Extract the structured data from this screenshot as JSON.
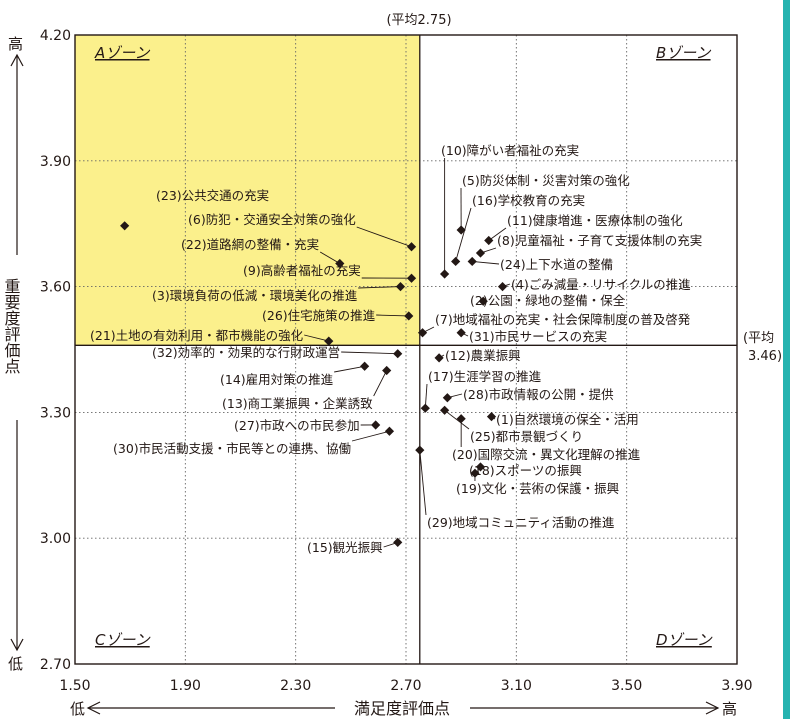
{
  "chart_data": {
    "type": "scatter",
    "x_ticks": [
      "1.50",
      "1.90",
      "2.30",
      "2.70",
      "3.10",
      "3.50",
      "3.90"
    ],
    "y_ticks": [
      "2.70",
      "3.00",
      "3.30",
      "3.60",
      "3.90",
      "4.20"
    ],
    "xlim": [
      1.5,
      3.9
    ],
    "ylim": [
      2.7,
      4.2
    ],
    "xlabel": "満足度評価点",
    "x_low": "低",
    "x_high": "高",
    "ylabel": "重要度評価点",
    "y_low": "低",
    "y_high": "高",
    "mean_x": 2.75,
    "mean_y": 3.46,
    "mean_x_label": "(平均2.75)",
    "mean_y_label_1": "(平均",
    "mean_y_label_2": "3.46)",
    "zones": {
      "a": "Aゾーン",
      "b": "Bゾーン",
      "c": "Cゾーン",
      "d": "Dゾーン"
    },
    "highlight_color": "#fbf08c",
    "grid": true,
    "points": [
      {
        "label": "(23)公共交通の充実",
        "x": 1.68,
        "y": 3.745
      },
      {
        "label": "(6)防犯・交通安全対策の強化",
        "x": 2.72,
        "y": 3.695
      },
      {
        "label": "(22)道路網の整備・充実",
        "x": 2.46,
        "y": 3.655
      },
      {
        "label": "(9)高齢者福祉の充実",
        "x": 2.72,
        "y": 3.62
      },
      {
        "label": "(3)環境負荷の低減・環境美化の推進",
        "x": 2.68,
        "y": 3.6
      },
      {
        "label": "(26)住宅施策の推進",
        "x": 2.71,
        "y": 3.53
      },
      {
        "label": "(21)土地の有効利用・都市機能の強化",
        "x": 2.42,
        "y": 3.47
      },
      {
        "label": "(10)障がい者福祉の充実",
        "x": 2.84,
        "y": 3.63
      },
      {
        "label": "(5)防災体制・災害対策の強化",
        "x": 2.9,
        "y": 3.735
      },
      {
        "label": "(16)学校教育の充実",
        "x": 2.88,
        "y": 3.66
      },
      {
        "label": "(11)健康増進・医療体制の強化",
        "x": 3.0,
        "y": 3.71
      },
      {
        "label": "(8)児童福祉・子育て支援体制の充実",
        "x": 2.97,
        "y": 3.68
      },
      {
        "label": "(24)上下水道の整備",
        "x": 2.94,
        "y": 3.66
      },
      {
        "label": "(4)ごみ減量・リサイクルの推進",
        "x": 3.05,
        "y": 3.6
      },
      {
        "label": "(2)公園・緑地の整備・保全",
        "x": 2.98,
        "y": 3.565
      },
      {
        "label": "(7)地域福祉の充実・社会保障制度の普及啓発",
        "x": 2.76,
        "y": 3.49
      },
      {
        "label": "(31)市民サービスの充実",
        "x": 2.9,
        "y": 3.49
      },
      {
        "label": "(32)効率的・効果的な行財政運営",
        "x": 2.67,
        "y": 3.44
      },
      {
        "label": "(14)雇用対策の推進",
        "x": 2.55,
        "y": 3.41
      },
      {
        "label": "(13)商工業振興・企業誘致",
        "x": 2.63,
        "y": 3.4
      },
      {
        "label": "(27)市政への市民参加",
        "x": 2.59,
        "y": 3.27
      },
      {
        "label": "(30)市民活動支援・市民等との連携、協働",
        "x": 2.64,
        "y": 3.255
      },
      {
        "label": "(15)観光振興",
        "x": 2.67,
        "y": 2.99
      },
      {
        "label": "(12)農業振興",
        "x": 2.82,
        "y": 3.43
      },
      {
        "label": "(17)生涯学習の推進",
        "x": 2.77,
        "y": 3.31
      },
      {
        "label": "(28)市政情報の公開・提供",
        "x": 2.85,
        "y": 3.335
      },
      {
        "label": "(1)自然環境の保全・活用",
        "x": 3.01,
        "y": 3.29
      },
      {
        "label": "(25)都市景観づくり",
        "x": 2.84,
        "y": 3.305
      },
      {
        "label": "(20)国際交流・異文化理解の推進",
        "x": 2.9,
        "y": 3.285
      },
      {
        "label": "(18)スポーツの振興",
        "x": 2.97,
        "y": 3.17
      },
      {
        "label": "(19)文化・芸術の保護・振興",
        "x": 2.95,
        "y": 3.155
      },
      {
        "label": "(29)地域コミュニティ活動の推進",
        "x": 2.75,
        "y": 3.21
      }
    ]
  }
}
